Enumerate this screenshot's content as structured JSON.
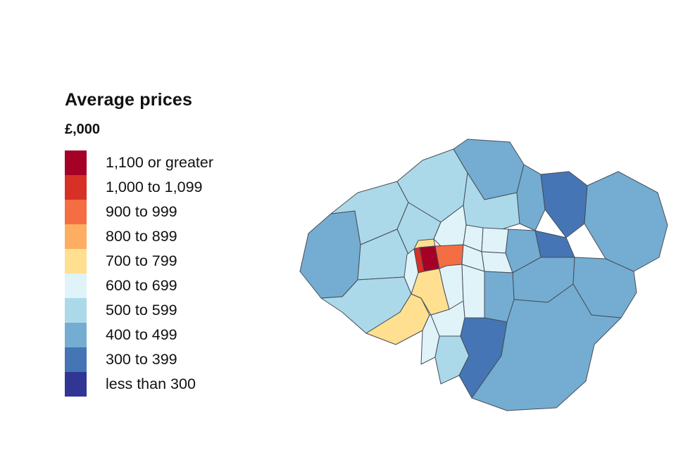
{
  "page": {
    "background": "#ffffff"
  },
  "legend": {
    "title": "Average prices",
    "unit": "£,000",
    "items": [
      {
        "label": "1,100 or greater",
        "color": "#a50026"
      },
      {
        "label": "1,000 to 1,099",
        "color": "#d73027"
      },
      {
        "label": "900 to 999",
        "color": "#f46d43"
      },
      {
        "label": "800 to 899",
        "color": "#fdae61"
      },
      {
        "label": "700 to 799",
        "color": "#fee090"
      },
      {
        "label": "600 to 699",
        "color": "#e0f3f8"
      },
      {
        "label": "500 to 599",
        "color": "#abd9e9"
      },
      {
        "label": "400 to 499",
        "color": "#74add1"
      },
      {
        "label": "300 to 399",
        "color": "#4575b4"
      },
      {
        "label": "less than 300",
        "color": "#313695"
      }
    ]
  },
  "map": {
    "border_color": "#474c58",
    "regions": [
      {
        "id": "region-1",
        "bucket": 7
      },
      {
        "id": "region-2",
        "bucket": 6
      },
      {
        "id": "region-3",
        "bucket": 6
      },
      {
        "id": "region-4",
        "bucket": 7
      },
      {
        "id": "region-5",
        "bucket": 6
      },
      {
        "id": "region-6",
        "bucket": 7
      },
      {
        "id": "region-7",
        "bucket": 8
      },
      {
        "id": "region-8",
        "bucket": 7
      },
      {
        "id": "region-9",
        "bucket": 6
      },
      {
        "id": "region-10",
        "bucket": 6
      },
      {
        "id": "region-11",
        "bucket": 6
      },
      {
        "id": "region-12",
        "bucket": 4
      },
      {
        "id": "region-13",
        "bucket": 5
      },
      {
        "id": "region-14",
        "bucket": 5
      },
      {
        "id": "region-15",
        "bucket": 5
      },
      {
        "id": "region-16",
        "bucket": 5
      },
      {
        "id": "region-17",
        "bucket": 5
      },
      {
        "id": "region-18",
        "bucket": 4
      },
      {
        "id": "region-19",
        "bucket": 0
      },
      {
        "id": "region-20",
        "bucket": 1
      },
      {
        "id": "region-21",
        "bucket": 2
      },
      {
        "id": "region-22",
        "bucket": 5
      },
      {
        "id": "region-23",
        "bucket": 5
      },
      {
        "id": "region-24",
        "bucket": 7
      },
      {
        "id": "region-25",
        "bucket": 8
      },
      {
        "id": "region-26",
        "bucket": 7
      },
      {
        "id": "region-27",
        "bucket": 7
      },
      {
        "id": "region-28",
        "bucket": 7
      },
      {
        "id": "region-29",
        "bucket": 4
      },
      {
        "id": "region-30",
        "bucket": 5
      },
      {
        "id": "region-31",
        "bucket": 5
      },
      {
        "id": "region-32",
        "bucket": 5
      },
      {
        "id": "region-33",
        "bucket": 6
      },
      {
        "id": "region-34",
        "bucket": 8
      },
      {
        "id": "region-35",
        "bucket": 7
      }
    ]
  },
  "chart_data": {
    "type": "choropleth",
    "title": "Average prices",
    "unit": "£,000",
    "legend_position": "left",
    "buckets": [
      {
        "label": "1,100 or greater",
        "color": "#a50026"
      },
      {
        "label": "1,000 to 1,099",
        "color": "#d73027"
      },
      {
        "label": "900 to 999",
        "color": "#f46d43"
      },
      {
        "label": "800 to 899",
        "color": "#fdae61"
      },
      {
        "label": "700 to 799",
        "color": "#fee090"
      },
      {
        "label": "600 to 699",
        "color": "#e0f3f8"
      },
      {
        "label": "500 to 599",
        "color": "#abd9e9"
      },
      {
        "label": "400 to 499",
        "color": "#74add1"
      },
      {
        "label": "300 to 399",
        "color": "#4575b4"
      },
      {
        "label": "less than 300",
        "color": "#313695"
      }
    ]
  }
}
